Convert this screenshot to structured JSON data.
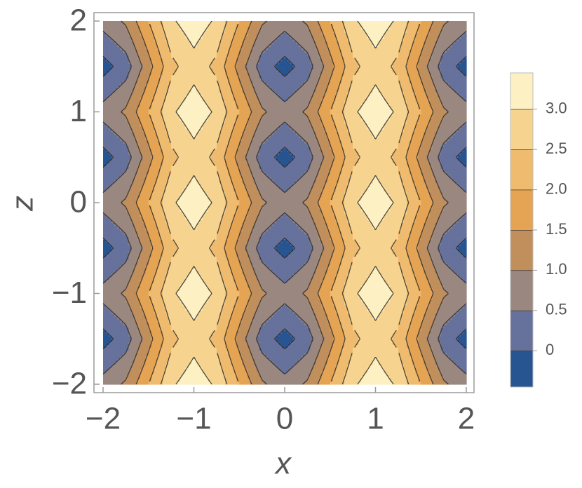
{
  "chart_data": {
    "type": "contour",
    "xlabel": "x",
    "ylabel": "z",
    "xlim": [
      -2,
      2
    ],
    "ylim": [
      -2,
      2
    ],
    "xticks": [
      {
        "value": -2,
        "label": "−2"
      },
      {
        "value": -1,
        "label": "−1"
      },
      0,
      1,
      2
    ],
    "yticks": [
      {
        "value": -2,
        "label": "−2"
      },
      {
        "value": -1,
        "label": "−1"
      },
      0,
      1,
      2
    ],
    "xgrid": [
      -2,
      -1.75,
      -1.5,
      -1.25,
      -1,
      -0.75,
      -0.5,
      -0.25,
      0,
      0.25,
      0.5,
      0.75,
      1,
      1.25,
      1.5,
      1.75,
      2
    ],
    "ygrid": [
      -2,
      -1.75,
      -1.5,
      -1.25,
      -1,
      -0.75,
      -0.5,
      -0.25,
      0,
      0.25,
      0.5,
      0.75,
      1,
      1.25,
      1.5,
      1.75,
      2
    ],
    "values": [
      [
        0.7,
        1.08,
        2.0,
        2.92,
        3.3,
        2.92,
        2.0,
        1.08,
        0.7,
        1.08,
        2.0,
        2.92,
        3.3,
        2.92,
        2.0,
        1.08,
        0.7
      ],
      [
        0.25,
        0.66,
        1.65,
        2.64,
        3.05,
        2.64,
        1.65,
        0.66,
        0.25,
        0.66,
        1.65,
        2.64,
        3.05,
        2.64,
        1.65,
        0.66,
        0.25
      ],
      [
        -0.2,
        0.24,
        1.3,
        2.36,
        2.8,
        2.36,
        1.3,
        0.24,
        -0.2,
        0.24,
        1.3,
        2.36,
        2.8,
        2.36,
        1.3,
        0.24,
        -0.2
      ],
      [
        0.25,
        0.66,
        1.65,
        2.64,
        3.05,
        2.64,
        1.65,
        0.66,
        0.25,
        0.66,
        1.65,
        2.64,
        3.05,
        2.64,
        1.65,
        0.66,
        0.25
      ],
      [
        0.7,
        1.08,
        2.0,
        2.92,
        3.3,
        2.92,
        2.0,
        1.08,
        0.7,
        1.08,
        2.0,
        2.92,
        3.3,
        2.92,
        2.0,
        1.08,
        0.7
      ],
      [
        0.25,
        0.66,
        1.65,
        2.64,
        3.05,
        2.64,
        1.65,
        0.66,
        0.25,
        0.66,
        1.65,
        2.64,
        3.05,
        2.64,
        1.65,
        0.66,
        0.25
      ],
      [
        -0.2,
        0.24,
        1.3,
        2.36,
        2.8,
        2.36,
        1.3,
        0.24,
        -0.2,
        0.24,
        1.3,
        2.36,
        2.8,
        2.36,
        1.3,
        0.24,
        -0.2
      ],
      [
        0.25,
        0.66,
        1.65,
        2.64,
        3.05,
        2.64,
        1.65,
        0.66,
        0.25,
        0.66,
        1.65,
        2.64,
        3.05,
        2.64,
        1.65,
        0.66,
        0.25
      ],
      [
        0.7,
        1.08,
        2.0,
        2.92,
        3.3,
        2.92,
        2.0,
        1.08,
        0.7,
        1.08,
        2.0,
        2.92,
        3.3,
        2.92,
        2.0,
        1.08,
        0.7
      ],
      [
        0.25,
        0.66,
        1.65,
        2.64,
        3.05,
        2.64,
        1.65,
        0.66,
        0.25,
        0.66,
        1.65,
        2.64,
        3.05,
        2.64,
        1.65,
        0.66,
        0.25
      ],
      [
        -0.2,
        0.24,
        1.3,
        2.36,
        2.8,
        2.36,
        1.3,
        0.24,
        -0.2,
        0.24,
        1.3,
        2.36,
        2.8,
        2.36,
        1.3,
        0.24,
        -0.2
      ],
      [
        0.25,
        0.66,
        1.65,
        2.64,
        3.05,
        2.64,
        1.65,
        0.66,
        0.25,
        0.66,
        1.65,
        2.64,
        3.05,
        2.64,
        1.65,
        0.66,
        0.25
      ],
      [
        0.7,
        1.08,
        2.0,
        2.92,
        3.3,
        2.92,
        2.0,
        1.08,
        0.7,
        1.08,
        2.0,
        2.92,
        3.3,
        2.92,
        2.0,
        1.08,
        0.7
      ],
      [
        0.25,
        0.66,
        1.65,
        2.64,
        3.05,
        2.64,
        1.65,
        0.66,
        0.25,
        0.66,
        1.65,
        2.64,
        3.05,
        2.64,
        1.65,
        0.66,
        0.25
      ],
      [
        -0.2,
        0.24,
        1.3,
        2.36,
        2.8,
        2.36,
        1.3,
        0.24,
        -0.2,
        0.24,
        1.3,
        2.36,
        2.8,
        2.36,
        1.3,
        0.24,
        -0.2
      ],
      [
        0.25,
        0.66,
        1.65,
        2.64,
        3.05,
        2.64,
        1.65,
        0.66,
        0.25,
        0.66,
        1.65,
        2.64,
        3.05,
        2.64,
        1.65,
        0.66,
        0.25
      ],
      [
        0.7,
        1.08,
        2.0,
        2.92,
        3.3,
        2.92,
        2.0,
        1.08,
        0.7,
        1.08,
        2.0,
        2.92,
        3.3,
        2.92,
        2.0,
        1.08,
        0.7
      ]
    ],
    "levels": [
      0,
      0.5,
      1.0,
      1.5,
      2.0,
      2.5,
      3.0
    ],
    "colors": [
      "#275592",
      "#66719c",
      "#9a8880",
      "#c08f5c",
      "#e5a453",
      "#efbb6e",
      "#f6d490",
      "#fdf1c3"
    ],
    "clim": [
      -0.45,
      3.45
    ],
    "cbticks": [
      0,
      0.5,
      {
        "value": 1.0,
        "label": "1.0"
      },
      {
        "value": 1.5,
        "label": "1.5"
      },
      {
        "value": 2.0,
        "label": "2.0"
      },
      {
        "value": 2.5,
        "label": "2.5"
      },
      {
        "value": 3.0,
        "label": "3.0"
      }
    ]
  }
}
